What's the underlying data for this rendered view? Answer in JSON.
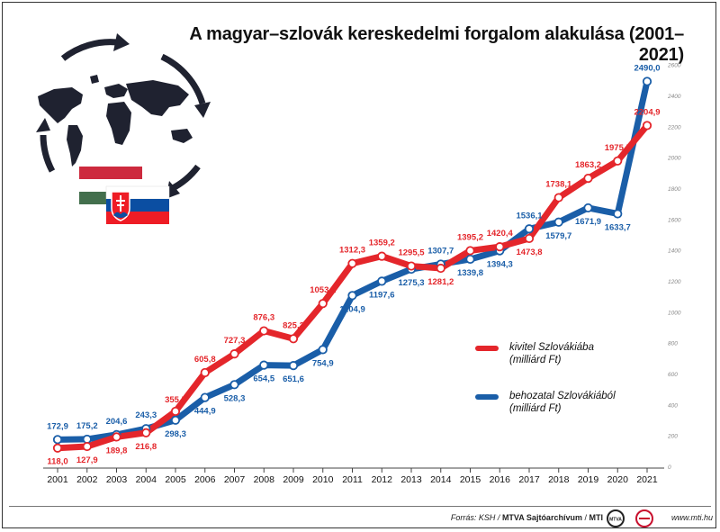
{
  "title": "A magyar–szlovák kereskedelmi forgalom alakulása (2001–2021)",
  "legend": {
    "export_label": "kivitel Szlovákiába",
    "export_unit": "(milliárd Ft)",
    "import_label": "behozatal Szlovákiából",
    "import_unit": "(milliárd Ft)"
  },
  "footer": {
    "source_prefix": "Forrás: KSH /",
    "source_archive": "MTVA Sajtóarchívum",
    "source_sep": "/",
    "source_mti": "MTI",
    "logo_text": "MTVA",
    "url": "www.mti.hu"
  },
  "colors": {
    "export": "#e4262b",
    "import": "#1a5ea8",
    "gridline": "#dddddd"
  },
  "chart_data": {
    "type": "line",
    "title": "A magyar–szlovák kereskedelmi forgalom alakulása (2001–2021)",
    "x": [
      "2001",
      "2002",
      "2003",
      "2004",
      "2005",
      "2006",
      "2007",
      "2008",
      "2009",
      "2010",
      "2011",
      "2012",
      "2013",
      "2014",
      "2015",
      "2016",
      "2017",
      "2018",
      "2019",
      "2020",
      "2021"
    ],
    "ylim": [
      0,
      2600
    ],
    "yticks": [
      0,
      200,
      400,
      600,
      800,
      1000,
      1200,
      1400,
      1600,
      1800,
      2000,
      2200,
      2400,
      2600
    ],
    "grid": false,
    "legend_position": "right",
    "series": [
      {
        "name": "kivitel Szlovákiába (milliárd Ft)",
        "values": [
          118.0,
          127.9,
          189.8,
          216.8,
          355.5,
          605.8,
          727.3,
          876.3,
          825.3,
          1053.1,
          1312.3,
          1359.2,
          1295.5,
          1281.2,
          1395.2,
          1420.4,
          1473.8,
          1738.1,
          1863.2,
          1975.5,
          2204.9
        ],
        "labels": [
          "118,0",
          "127,9",
          "189,8",
          "216,8",
          "355,5",
          "605,8",
          "727,3",
          "876,3",
          "825,3",
          "1053,1",
          "1312,3",
          "1359,2",
          "1295,5",
          "1281,2",
          "1395,2",
          "1420,4",
          "1473,8",
          "1738,1",
          "1863,2",
          "1975,5",
          "2204,9"
        ]
      },
      {
        "name": "behozatal Szlovákiából (milliárd Ft)",
        "values": [
          172.9,
          175.2,
          204.6,
          243.3,
          298.3,
          444.9,
          528.3,
          654.5,
          651.6,
          754.9,
          1104.9,
          1197.6,
          1275.3,
          1307.7,
          1339.8,
          1394.3,
          1536.1,
          1579.7,
          1671.9,
          1633.7,
          2490.0
        ],
        "labels": [
          "172,9",
          "175,2",
          "204,6",
          "243,3",
          "298,3",
          "444,9",
          "528,3",
          "654,5",
          "651,6",
          "754,9",
          "1104,9",
          "1197,6",
          "1275,3",
          "1307,7",
          "1339,8",
          "1394,3",
          "1536,1",
          "1579,7",
          "1671,9",
          "1633,7",
          "2490,0"
        ]
      }
    ]
  }
}
